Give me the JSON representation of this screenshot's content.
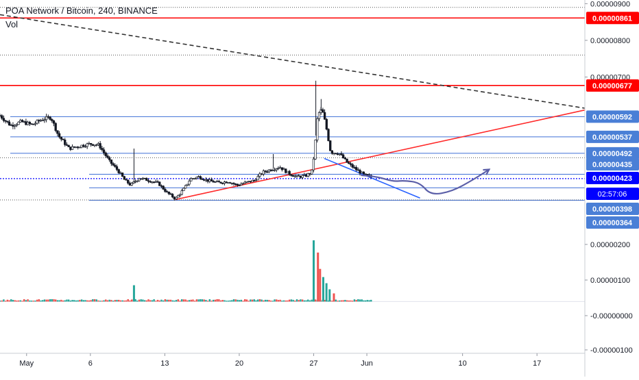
{
  "header": {
    "symbol": "POA Network / Bitcoin, 240, BINANCE",
    "volume_label": "Vol"
  },
  "chart_data": {
    "type": "candlestick",
    "price_axis_ticks": [
      "0.00000900",
      "0.00000800",
      "0.00000700",
      "0.00000200",
      "0.00000100",
      "-0.00000000",
      "-0.00000100"
    ],
    "x_ticks": [
      {
        "label": "May",
        "day": 0
      },
      {
        "label": "6",
        "day": 6
      },
      {
        "label": "13",
        "day": 13
      },
      {
        "label": "20",
        "day": 20
      },
      {
        "label": "27",
        "day": 27
      },
      {
        "label": "Jun",
        "day": 32
      },
      {
        "label": "10",
        "day": 41
      },
      {
        "label": "17",
        "day": 48
      }
    ],
    "price_range": [
      3.5e-06,
      9.1e-06
    ],
    "x_range_days": [
      -2.5,
      52.5
    ],
    "horizontal_levels": [
      {
        "value": 8.61e-06,
        "label": "0.00000861",
        "color": "#ff0000",
        "style": "solid",
        "tag": true
      },
      {
        "value": 6.77e-06,
        "label": "0.00000677",
        "color": "#ff0000",
        "style": "solid",
        "tag": true
      },
      {
        "value": 5.92e-06,
        "label": "0.00000592",
        "color": "#3d6fd6",
        "style": "solid",
        "tag": true
      },
      {
        "value": 5.37e-06,
        "label": "0.00000537",
        "color": "#3d6fd6",
        "style": "solid",
        "tag": true
      },
      {
        "value": 4.92e-06,
        "label": "0.00000492",
        "color": "#3d6fd6",
        "style": "solid",
        "tag": true
      },
      {
        "value": 4.35e-06,
        "label": "0.00000435",
        "color": "#3d6fd6",
        "style": "solid",
        "tag": true
      },
      {
        "value": 3.98e-06,
        "label": "0.00000398",
        "color": "#3d6fd6",
        "style": "solid",
        "tag": true
      },
      {
        "value": 3.64e-06,
        "label": "0.00000364",
        "color": "#3d6fd6",
        "style": "solid",
        "tag": true
      }
    ],
    "current_price": {
      "value": 4.23e-06,
      "label": "0.00000423",
      "countdown": "02:57:06",
      "color": "#0000ff"
    },
    "dotted_levels": [
      8.9e-06,
      7.6e-06,
      4.8e-06,
      3.65e-06
    ],
    "trendlines": [
      {
        "name": "descending-resistance",
        "color": "#333333",
        "style": "dashed",
        "points": [
          [
            -2.5,
            8.7e-06
          ],
          [
            52.5,
            6.15e-06
          ]
        ]
      },
      {
        "name": "ascending-support",
        "color": "#ff2a2a",
        "style": "solid",
        "points": [
          [
            14,
            3.66e-06
          ],
          [
            52.5,
            6.1e-06
          ]
        ]
      },
      {
        "name": "short-downtrend",
        "color": "#2962ff",
        "style": "solid",
        "points": [
          [
            28,
            4.78e-06
          ],
          [
            37,
            3.7e-06
          ]
        ]
      }
    ],
    "projection": {
      "color": "#5b5fa8",
      "points": [
        [
          31.5,
          4.32e-06
        ],
        [
          33,
          4.28e-06
        ],
        [
          34.5,
          4.15e-06
        ],
        [
          35.5,
          4.18e-06
        ],
        [
          37,
          4.12e-06
        ],
        [
          38,
          3.78e-06
        ],
        [
          40,
          3.88e-06
        ],
        [
          42,
          4.2e-06
        ],
        [
          43.5,
          4.48e-06
        ]
      ]
    },
    "price_path": [
      [
        -2.5,
        5.95e-06
      ],
      [
        -1.5,
        5.68e-06
      ],
      [
        -0.5,
        5.78e-06
      ],
      [
        0.5,
        5.7e-06
      ],
      [
        1.5,
        5.85e-06
      ],
      [
        2.3,
        5.9e-06
      ],
      [
        3,
        5.4e-06
      ],
      [
        4,
        5.05e-06
      ],
      [
        5,
        5.12e-06
      ],
      [
        6,
        5.18e-06
      ],
      [
        6.8,
        5.15e-06
      ],
      [
        7.8,
        4.7e-06
      ],
      [
        8.6,
        4.45e-06
      ],
      [
        9.2,
        4.2e-06
      ],
      [
        9.8,
        4.05e-06
      ],
      [
        10.6,
        4.25e-06
      ],
      [
        11.5,
        4.18e-06
      ],
      [
        12.4,
        4.1e-06
      ],
      [
        13.2,
        3.85e-06
      ],
      [
        14,
        3.68e-06
      ],
      [
        14.8,
        3.95e-06
      ],
      [
        15.4,
        4.22e-06
      ],
      [
        16.2,
        4.28e-06
      ],
      [
        17,
        4.18e-06
      ],
      [
        18,
        4.12e-06
      ],
      [
        19,
        4.15e-06
      ],
      [
        19.8,
        4.05e-06
      ],
      [
        20.6,
        4.12e-06
      ],
      [
        21.4,
        4.18e-06
      ],
      [
        22.2,
        4.4e-06
      ],
      [
        23,
        4.48e-06
      ],
      [
        23.8,
        4.55e-06
      ],
      [
        24.6,
        4.38e-06
      ],
      [
        25.4,
        4.28e-06
      ],
      [
        26.2,
        4.3e-06
      ],
      [
        26.8,
        4.4e-06
      ],
      [
        27.1,
        5e-06
      ],
      [
        27.3,
        5.8e-06
      ],
      [
        27.6,
        6.12e-06
      ],
      [
        27.9,
        6e-06
      ],
      [
        28.2,
        5.6e-06
      ],
      [
        28.6,
        4.95e-06
      ],
      [
        29.4,
        4.92e-06
      ],
      [
        30.2,
        4.65e-06
      ],
      [
        31,
        4.48e-06
      ],
      [
        31.8,
        4.32e-06
      ],
      [
        32.4,
        4.28e-06
      ]
    ],
    "wick_highs": [
      [
        10.1,
        5.05e-06
      ],
      [
        23.2,
        4.9e-06
      ],
      [
        27.2,
        6.9e-06
      ],
      [
        27.7,
        6.4e-06
      ]
    ],
    "volume_range": [
      -1.2e-06,
      1.6e-06
    ],
    "volume_spikes": [
      {
        "day": 10.1,
        "value": 4e-07,
        "color": "#26a69a"
      },
      {
        "day": 27.0,
        "value": 1.5e-06,
        "color": "#26a69a"
      },
      {
        "day": 27.4,
        "value": 1.2e-06,
        "color": "#ef5350"
      },
      {
        "day": 27.6,
        "value": 8e-07,
        "color": "#ef5350"
      },
      {
        "day": 27.9,
        "value": 6e-07,
        "color": "#26a69a"
      },
      {
        "day": 28.2,
        "value": 4.5e-07,
        "color": "#26a69a"
      },
      {
        "day": 28.5,
        "value": 3e-07,
        "color": "#26a69a"
      },
      {
        "day": 28.9,
        "value": 2e-07,
        "color": "#ef5350"
      }
    ],
    "colors": {
      "up": "#26a69a",
      "down": "#ef5350",
      "candle": "#131722",
      "grid_divider": "#c9ccd3",
      "tag_red": "#ff0000",
      "tag_blue": "#4a7fd6",
      "tag_current": "#0000ff"
    }
  }
}
